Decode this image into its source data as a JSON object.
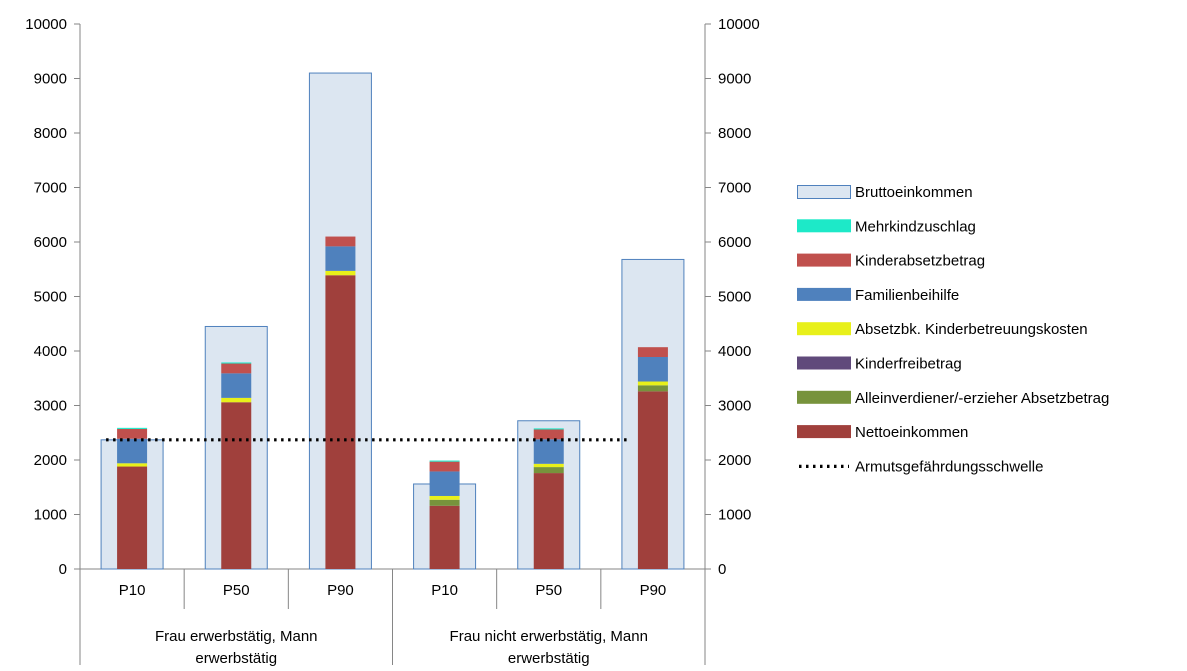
{
  "chart_data": {
    "type": "bar",
    "ylim": [
      0,
      10000
    ],
    "yticks": [
      0,
      1000,
      2000,
      3000,
      4000,
      5000,
      6000,
      7000,
      8000,
      9000,
      10000
    ],
    "categories": [
      "P10",
      "P50",
      "P90",
      "P10",
      "P50",
      "P90"
    ],
    "groups": [
      {
        "label": "Frau erwerbstätig, Mann erwerbstätig",
        "label_lines": [
          "Frau erwerbstätig, Mann",
          "erwerbstätig"
        ]
      },
      {
        "label": "Frau nicht erwerbstätig, Mann erwerbstätig",
        "label_lines": [
          "Frau nicht erwerbstätig, Mann",
          "erwerbstätig"
        ]
      }
    ],
    "background_series": {
      "name": "Bruttoeinkommen",
      "color": "#dce6f1",
      "border": "#4f81bd",
      "values": [
        2370,
        4450,
        9100,
        1560,
        2720,
        5680
      ]
    },
    "stacked_series": [
      {
        "name": "Nettoeinkommen",
        "color": "#a0403c",
        "values": [
          1880,
          3060,
          5390,
          1160,
          1760,
          3260
        ]
      },
      {
        "name": "Alleinverdiener/-erzieher Absetzbetrag",
        "color": "#77933c",
        "values": [
          0,
          0,
          0,
          110,
          110,
          110
        ]
      },
      {
        "name": "Kinderfreibetrag",
        "color": "#604a7b",
        "values": [
          0,
          0,
          0,
          0,
          0,
          0
        ]
      },
      {
        "name": "Absetzbk. Kinderbetreuungskosten",
        "color": "#e8f01a",
        "values": [
          60,
          80,
          80,
          70,
          60,
          70
        ]
      },
      {
        "name": "Familienbeihilfe",
        "color": "#4f81bd",
        "values": [
          450,
          450,
          450,
          450,
          450,
          450
        ]
      },
      {
        "name": "Kinderabsetzbetrag",
        "color": "#c0504d",
        "values": [
          180,
          180,
          180,
          180,
          180,
          180
        ]
      },
      {
        "name": "Mehrkindzuschlag",
        "color": "#1de9c8",
        "values": [
          20,
          20,
          0,
          20,
          20,
          0
        ]
      }
    ],
    "threshold": {
      "name": "Armutsgefährdungsschwelle",
      "value": 2370,
      "color": "#000000"
    },
    "legend": {
      "position": "right",
      "items": [
        {
          "name": "Bruttoeinkommen",
          "kind": "box",
          "color": "#dce6f1",
          "border": "#4f81bd"
        },
        {
          "name": "Mehrkindzuschlag",
          "kind": "fill",
          "color": "#1de9c8"
        },
        {
          "name": "Kinderabsetzbetrag",
          "kind": "fill",
          "color": "#c0504d"
        },
        {
          "name": "Familienbeihilfe",
          "kind": "fill",
          "color": "#4f81bd"
        },
        {
          "name": "Absetzbk. Kinderbetreuungskosten",
          "kind": "fill",
          "color": "#e8f01a"
        },
        {
          "name": "Kinderfreibetrag",
          "kind": "fill",
          "color": "#604a7b"
        },
        {
          "name": "Alleinverdiener/-erzieher Absetzbetrag",
          "kind": "fill",
          "color": "#77933c"
        },
        {
          "name": "Nettoeinkommen",
          "kind": "fill",
          "color": "#a0403c"
        },
        {
          "name": "Armutsgefährdungsschwelle",
          "kind": "dots",
          "color": "#000000"
        }
      ]
    },
    "grid": false
  }
}
